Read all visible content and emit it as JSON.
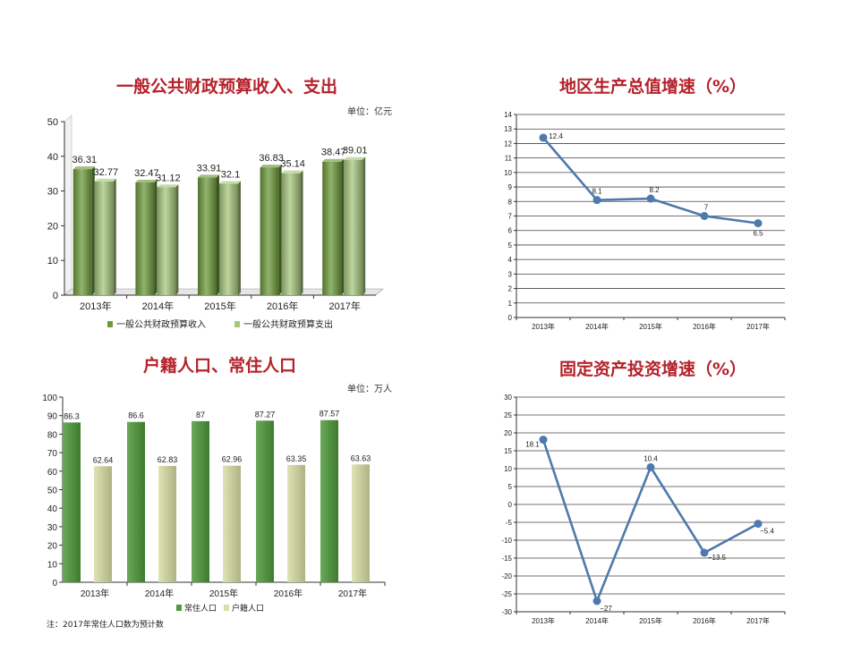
{
  "chart_data": [
    {
      "type": "bar",
      "title": "一般公共财政预算收入、支出",
      "unit_label": "单位：亿元",
      "categories": [
        "2013年",
        "2014年",
        "2015年",
        "2016年",
        "2017年"
      ],
      "series": [
        {
          "name": "一般公共财政预算收入",
          "values": [
            36.31,
            32.47,
            33.91,
            36.83,
            38.47
          ],
          "color": "#6e9a3c"
        },
        {
          "name": "一般公共财政预算支出",
          "values": [
            32.77,
            31.12,
            32.1,
            35.14,
            39.01
          ],
          "color": "#a7c77e"
        }
      ],
      "ylim": [
        0,
        50
      ],
      "yticks": [
        0,
        10,
        20,
        30,
        40,
        50
      ],
      "legend": "bottom",
      "grid": false,
      "style": "3d-cylinder"
    },
    {
      "type": "line",
      "title": "地区生产总值增速（%）",
      "categories": [
        "2013年",
        "2014年",
        "2015年",
        "2016年",
        "2017年"
      ],
      "series": [
        {
          "values": [
            12.4,
            8.1,
            8.2,
            7,
            6.5
          ],
          "labels": [
            "12.4",
            "8.1",
            "8.2",
            "7",
            "6.5"
          ],
          "color": "#4e79ad"
        }
      ],
      "ylim": [
        0,
        14
      ],
      "yticks": [
        0,
        1,
        2,
        3,
        4,
        5,
        6,
        7,
        8,
        9,
        10,
        11,
        12,
        13,
        14
      ],
      "grid": true
    },
    {
      "type": "bar",
      "title": "户籍人口、常住人口",
      "unit_label": "单位：万人",
      "categories": [
        "2013年",
        "2014年",
        "2015年",
        "2016年",
        "2017年"
      ],
      "series": [
        {
          "name": "常住人口",
          "values": [
            86.3,
            86.6,
            87,
            87.27,
            87.57
          ],
          "color": "#4f9a3b"
        },
        {
          "name": "户籍人口",
          "values": [
            62.64,
            62.83,
            62.96,
            63.35,
            63.63
          ],
          "color": "#d9dfa6"
        }
      ],
      "ylim": [
        0,
        100
      ],
      "yticks": [
        0,
        10,
        20,
        30,
        40,
        50,
        60,
        70,
        80,
        90,
        100
      ],
      "legend": "bottom",
      "grid": false,
      "note": "注：2017年常住人口数为预计数"
    },
    {
      "type": "line",
      "title": "固定资产投资增速（%）",
      "categories": [
        "2013年",
        "2014年",
        "2015年",
        "2016年",
        "2017年"
      ],
      "series": [
        {
          "values": [
            18.1,
            -27,
            10.4,
            -13.5,
            -5.4
          ],
          "labels": [
            "18.1",
            "−27",
            "10.4",
            "−13.5",
            "−5.4"
          ],
          "color": "#4e79ad"
        }
      ],
      "ylim": [
        -30,
        30
      ],
      "yticks": [
        -30,
        -25,
        -20,
        -15,
        -10,
        -5,
        0,
        5,
        10,
        15,
        20,
        25,
        30
      ],
      "grid": true
    }
  ]
}
